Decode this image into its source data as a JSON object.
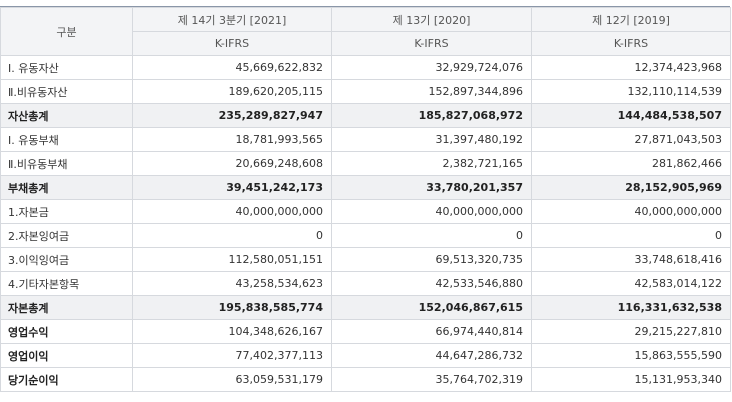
{
  "header": {
    "corner_label": "구분",
    "periods": [
      {
        "label": "제 14기 3분기 [2021]",
        "standard": "K-IFRS"
      },
      {
        "label": "제 13기 [2020]",
        "standard": "K-IFRS"
      },
      {
        "label": "제 12기 [2019]",
        "standard": "K-IFRS"
      }
    ]
  },
  "rows": [
    {
      "label": "Ⅰ. 유동자산",
      "values": [
        "45,669,622,832",
        "32,929,724,076",
        "12,374,423,968"
      ],
      "style": "normal"
    },
    {
      "label": "Ⅱ.비유동자산",
      "values": [
        "189,620,205,115",
        "152,897,344,896",
        "132,110,114,539"
      ],
      "style": "normal"
    },
    {
      "label": "자산총계",
      "values": [
        "235,289,827,947",
        "185,827,068,972",
        "144,484,538,507"
      ],
      "style": "total"
    },
    {
      "label": "Ⅰ. 유동부채",
      "values": [
        "18,781,993,565",
        "31,397,480,192",
        "27,871,043,503"
      ],
      "style": "normal"
    },
    {
      "label": "Ⅱ.비유동부채",
      "values": [
        "20,669,248,608",
        "2,382,721,165",
        "281,862,466"
      ],
      "style": "normal"
    },
    {
      "label": "부채총계",
      "values": [
        "39,451,242,173",
        "33,780,201,357",
        "28,152,905,969"
      ],
      "style": "total"
    },
    {
      "label": "1.자본금",
      "values": [
        "40,000,000,000",
        "40,000,000,000",
        "40,000,000,000"
      ],
      "style": "normal"
    },
    {
      "label": "2.자본잉여금",
      "values": [
        "0",
        "0",
        "0"
      ],
      "style": "normal"
    },
    {
      "label": "3.이익잉여금",
      "values": [
        "112,580,051,151",
        "69,513,320,735",
        "33,748,618,416"
      ],
      "style": "normal"
    },
    {
      "label": "4.기타자본항목",
      "values": [
        "43,258,534,623",
        "42,533,546,880",
        "42,583,014,122"
      ],
      "style": "normal"
    },
    {
      "label": "자본총계",
      "values": [
        "195,838,585,774",
        "152,046,867,615",
        "116,331,632,538"
      ],
      "style": "total"
    },
    {
      "label": "영업수익",
      "values": [
        "104,348,626,167",
        "66,974,440,814",
        "29,215,227,810"
      ],
      "style": "bold-label"
    },
    {
      "label": "영업이익",
      "values": [
        "77,402,377,113",
        "44,647,286,732",
        "15,863,555,590"
      ],
      "style": "bold-label"
    },
    {
      "label": "당기순이익",
      "values": [
        "63,059,531,179",
        "35,764,702,319",
        "15,131,953,340"
      ],
      "style": "bold-label"
    }
  ]
}
